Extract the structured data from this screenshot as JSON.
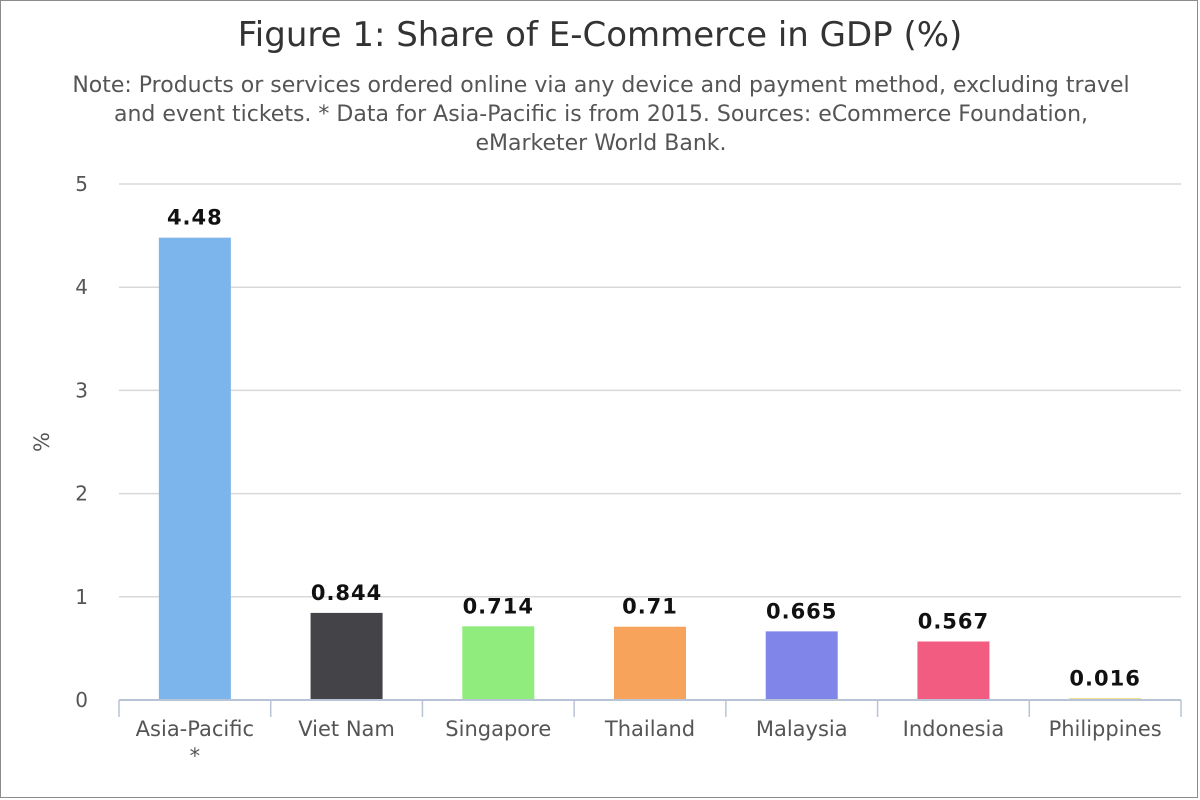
{
  "chart_data": {
    "type": "bar",
    "title": "Figure 1: Share of E-Commerce in GDP (%)",
    "subtitle": "Note: Products or services ordered online via any device and payment method, excluding travel and event tickets. * Data for Asia-Pacific is from 2015. Sources: eCommerce Foundation, eMarketer World Bank.",
    "ylabel": "%",
    "xlabel": "",
    "ylim": [
      0,
      5
    ],
    "yticks": [
      0,
      1,
      2,
      3,
      4,
      5
    ],
    "grid": true,
    "categories": [
      [
        "Asia-Pacific",
        "*"
      ],
      [
        "Viet Nam"
      ],
      [
        "Singapore"
      ],
      [
        "Thailand"
      ],
      [
        "Malaysia"
      ],
      [
        "Indonesia"
      ],
      [
        "Philippines"
      ]
    ],
    "values": [
      4.48,
      0.844,
      0.714,
      0.71,
      0.665,
      0.567,
      0.016
    ],
    "data_labels": [
      "4.48",
      "0.844",
      "0.714",
      "0.71",
      "0.665",
      "0.567",
      "0.016"
    ],
    "colors": [
      "#7cb5ec",
      "#434348",
      "#90ed7d",
      "#f7a35c",
      "#8085e9",
      "#f15c80",
      "#e4d354"
    ]
  }
}
